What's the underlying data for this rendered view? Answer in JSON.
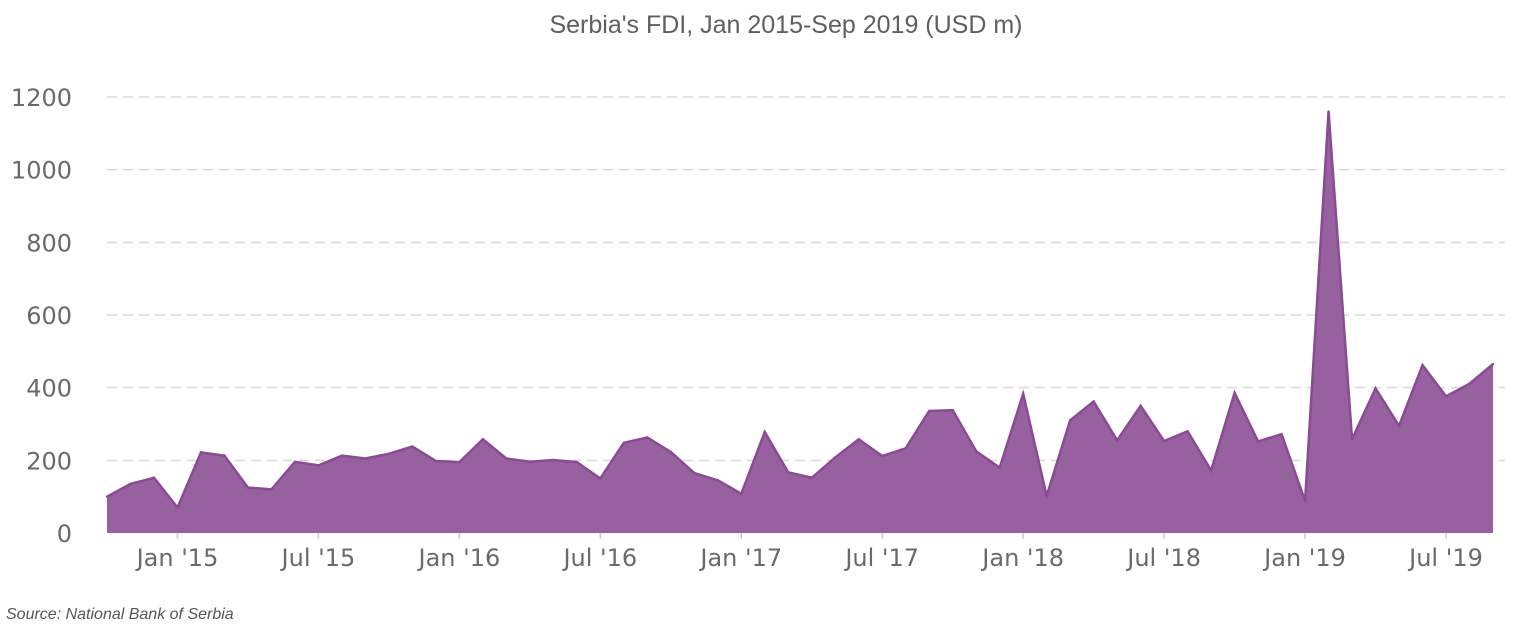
{
  "chart_data": {
    "type": "area",
    "title": "Serbia's FDI, Jan 2015-Sep 2019 (USD m)",
    "xlabel": "",
    "ylabel": "",
    "ylim": [
      0,
      1200
    ],
    "yticks": [
      "0",
      "200",
      "400",
      "600",
      "800",
      "1000",
      "1200"
    ],
    "xtick_labels": [
      {
        "label": "Jan '15",
        "date": "2015-01"
      },
      {
        "label": "Jul '15",
        "date": "2015-07"
      },
      {
        "label": "Jan '16",
        "date": "2016-01"
      },
      {
        "label": "Jul '16",
        "date": "2016-07"
      },
      {
        "label": "Jan '17",
        "date": "2017-01"
      },
      {
        "label": "Jul '17",
        "date": "2017-07"
      },
      {
        "label": "Jan '18",
        "date": "2018-01"
      },
      {
        "label": "Jul '18",
        "date": "2018-07"
      },
      {
        "label": "Jan '19",
        "date": "2019-01"
      },
      {
        "label": "Jul '19",
        "date": "2019-07"
      }
    ],
    "grid": true,
    "series": [
      {
        "color": "#8b4a94",
        "fill": "#97609f",
        "x": [
          "2014-10",
          "2014-11",
          "2014-12",
          "2015-01",
          "2015-02",
          "2015-03",
          "2015-04",
          "2015-05",
          "2015-06",
          "2015-07",
          "2015-08",
          "2015-09",
          "2015-10",
          "2015-11",
          "2015-12",
          "2016-01",
          "2016-02",
          "2016-03",
          "2016-04",
          "2016-05",
          "2016-06",
          "2016-07",
          "2016-08",
          "2016-09",
          "2016-10",
          "2016-11",
          "2016-12",
          "2017-01",
          "2017-02",
          "2017-03",
          "2017-04",
          "2017-05",
          "2017-06",
          "2017-07",
          "2017-08",
          "2017-09",
          "2017-10",
          "2017-11",
          "2017-12",
          "2018-01",
          "2018-02",
          "2018-03",
          "2018-04",
          "2018-05",
          "2018-06",
          "2018-07",
          "2018-08",
          "2018-09",
          "2018-10",
          "2018-11",
          "2018-12",
          "2019-01",
          "2019-02",
          "2019-03",
          "2019-04",
          "2019-05",
          "2019-06",
          "2019-07",
          "2019-08",
          "2019-09"
        ],
        "values": [
          100,
          135,
          152,
          70,
          222,
          213,
          125,
          120,
          196,
          186,
          213,
          205,
          218,
          238,
          198,
          195,
          258,
          205,
          196,
          201,
          195,
          150,
          248,
          263,
          223,
          165,
          145,
          108,
          278,
          167,
          152,
          208,
          258,
          212,
          233,
          336,
          338,
          225,
          180,
          383,
          102,
          310,
          362,
          255,
          350,
          253,
          280,
          172,
          386,
          252,
          272,
          88,
          1160,
          258,
          398,
          295,
          462,
          376,
          411,
          465
        ]
      }
    ]
  },
  "source": "Source: National Bank of Serbia"
}
